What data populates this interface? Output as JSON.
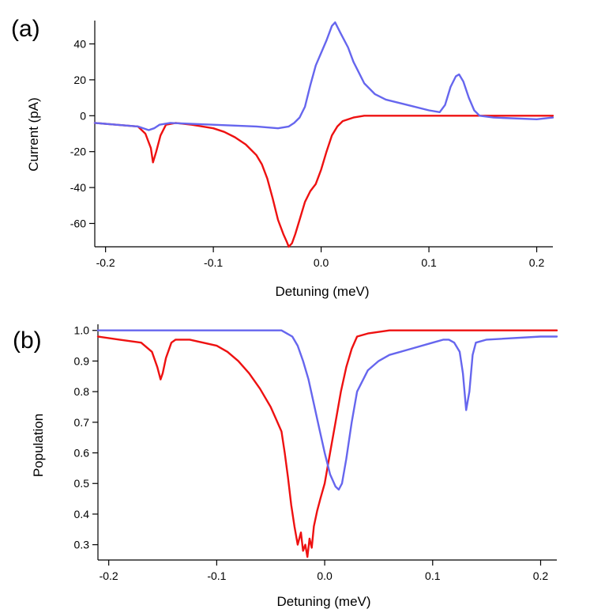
{
  "colors": {
    "red_series": "#ee1111",
    "blue_series": "#6666ee",
    "axis": "#000000"
  },
  "chart_data": [
    {
      "panel_label": "(a)",
      "type": "line",
      "xlabel": "Detuning (meV)",
      "ylabel": "Current (pA)",
      "xlim": [
        -0.21,
        0.215
      ],
      "ylim": [
        -73,
        53
      ],
      "xticks": [
        -0.2,
        -0.1,
        0.0,
        0.1,
        0.2
      ],
      "xtick_labels": [
        "-0.2",
        "-0.1",
        "0.0",
        "0.1",
        "0.2"
      ],
      "yticks": [
        40,
        20,
        0,
        -20,
        -40,
        -60
      ],
      "ytick_labels": [
        "40",
        "20",
        "0",
        "-20",
        "-40",
        "-60"
      ],
      "series": [
        {
          "name": "red",
          "color": "#ee1111",
          "x": [
            -0.21,
            -0.19,
            -0.17,
            -0.163,
            -0.158,
            -0.156,
            -0.153,
            -0.149,
            -0.144,
            -0.135,
            -0.12,
            -0.1,
            -0.09,
            -0.08,
            -0.07,
            -0.06,
            -0.055,
            -0.05,
            -0.045,
            -0.04,
            -0.035,
            -0.032,
            -0.03,
            -0.027,
            -0.024,
            -0.02,
            -0.015,
            -0.01,
            -0.005,
            0,
            0.005,
            0.01,
            0.015,
            0.02,
            0.03,
            0.04,
            0.06,
            0.08,
            0.1,
            0.15,
            0.2,
            0.215
          ],
          "values": [
            -4,
            -5,
            -6,
            -10,
            -18,
            -26,
            -20,
            -11,
            -5,
            -4,
            -5,
            -7,
            -9,
            -12,
            -16,
            -22,
            -27,
            -35,
            -46,
            -58,
            -66,
            -70,
            -73,
            -71,
            -66,
            -58,
            -48,
            -42,
            -38,
            -30,
            -20,
            -11,
            -6,
            -3,
            -1,
            0,
            0,
            0,
            0,
            0,
            0,
            0
          ]
        },
        {
          "name": "blue",
          "color": "#6666ee",
          "x": [
            -0.21,
            -0.19,
            -0.17,
            -0.16,
            -0.155,
            -0.15,
            -0.14,
            -0.1,
            -0.06,
            -0.04,
            -0.03,
            -0.025,
            -0.02,
            -0.015,
            -0.01,
            -0.005,
            0,
            0.005,
            0.01,
            0.013,
            0.018,
            0.025,
            0.03,
            0.035,
            0.04,
            0.05,
            0.06,
            0.08,
            0.1,
            0.11,
            0.115,
            0.12,
            0.125,
            0.128,
            0.132,
            0.137,
            0.142,
            0.147,
            0.16,
            0.2,
            0.215
          ],
          "values": [
            -4,
            -5,
            -6,
            -8,
            -7,
            -5,
            -4,
            -5,
            -6,
            -7,
            -6,
            -4,
            -1,
            5,
            17,
            28,
            35,
            42,
            50,
            52,
            46,
            38,
            30,
            24,
            18,
            12,
            9,
            6,
            3,
            2,
            6,
            16,
            22,
            23,
            19,
            10,
            3,
            0,
            -1,
            -2,
            -1
          ]
        }
      ]
    },
    {
      "panel_label": "(b)",
      "type": "line",
      "xlabel": "Detuning (meV)",
      "ylabel": "Population",
      "xlim": [
        -0.21,
        0.215
      ],
      "ylim": [
        0.25,
        1.02
      ],
      "xticks": [
        -0.2,
        -0.1,
        0.0,
        0.1,
        0.2
      ],
      "xtick_labels": [
        "-0.2",
        "-0.1",
        "0.0",
        "0.1",
        "0.2"
      ],
      "yticks": [
        1.0,
        0.9,
        0.8,
        0.7,
        0.6,
        0.5,
        0.4,
        0.3
      ],
      "ytick_labels": [
        "1.0",
        "0.9",
        "0.8",
        "0.7",
        "0.6",
        "0.5",
        "0.4",
        "0.3"
      ],
      "series": [
        {
          "name": "red",
          "color": "#ee1111",
          "x": [
            -0.21,
            -0.19,
            -0.17,
            -0.16,
            -0.155,
            -0.152,
            -0.15,
            -0.147,
            -0.142,
            -0.138,
            -0.125,
            -0.1,
            -0.09,
            -0.08,
            -0.07,
            -0.06,
            -0.05,
            -0.045,
            -0.04,
            -0.037,
            -0.034,
            -0.031,
            -0.028,
            -0.025,
            -0.022,
            -0.02,
            -0.018,
            -0.016,
            -0.014,
            -0.012,
            -0.01,
            -0.007,
            -0.004,
            0,
            0.005,
            0.01,
            0.015,
            0.02,
            0.025,
            0.03,
            0.04,
            0.06,
            0.08,
            0.1,
            0.15,
            0.2,
            0.215
          ],
          "values": [
            0.98,
            0.97,
            0.96,
            0.93,
            0.88,
            0.84,
            0.86,
            0.91,
            0.96,
            0.97,
            0.97,
            0.95,
            0.93,
            0.9,
            0.86,
            0.81,
            0.75,
            0.71,
            0.67,
            0.6,
            0.52,
            0.43,
            0.36,
            0.3,
            0.34,
            0.28,
            0.3,
            0.26,
            0.32,
            0.29,
            0.36,
            0.41,
            0.45,
            0.5,
            0.6,
            0.7,
            0.8,
            0.88,
            0.94,
            0.98,
            0.99,
            1.0,
            1.0,
            1.0,
            1.0,
            1.0,
            1.0
          ]
        },
        {
          "name": "blue",
          "color": "#6666ee",
          "x": [
            -0.21,
            -0.15,
            -0.1,
            -0.06,
            -0.04,
            -0.035,
            -0.03,
            -0.025,
            -0.02,
            -0.015,
            -0.01,
            -0.005,
            0,
            0.005,
            0.01,
            0.013,
            0.016,
            0.02,
            0.025,
            0.03,
            0.04,
            0.05,
            0.06,
            0.08,
            0.1,
            0.11,
            0.115,
            0.12,
            0.125,
            0.128,
            0.131,
            0.134,
            0.137,
            0.14,
            0.15,
            0.2,
            0.215
          ],
          "values": [
            1.0,
            1.0,
            1.0,
            1.0,
            1.0,
            0.99,
            0.98,
            0.95,
            0.9,
            0.84,
            0.76,
            0.68,
            0.6,
            0.53,
            0.49,
            0.48,
            0.5,
            0.58,
            0.7,
            0.8,
            0.87,
            0.9,
            0.92,
            0.94,
            0.96,
            0.97,
            0.97,
            0.96,
            0.93,
            0.86,
            0.74,
            0.8,
            0.92,
            0.96,
            0.97,
            0.98,
            0.98
          ]
        }
      ]
    }
  ]
}
